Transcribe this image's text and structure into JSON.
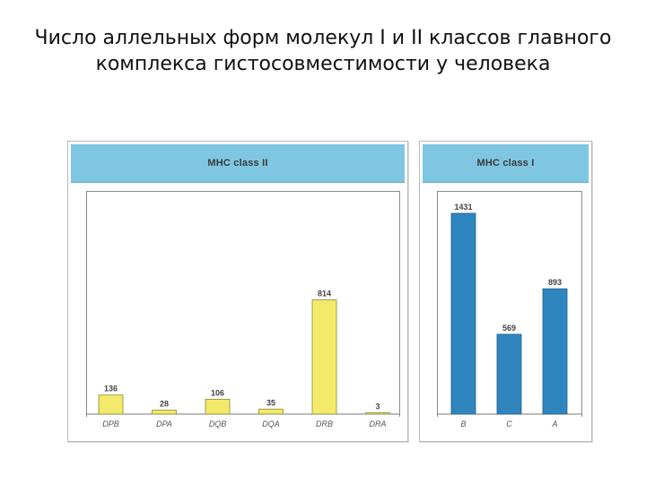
{
  "title": {
    "line1": "Число аллельных форм молекул I и II классов главного",
    "line2": "комплекса гистосовместимости у человека"
  },
  "chart_data": [
    {
      "type": "bar",
      "title": "MHC class II",
      "categories": [
        "DPB",
        "DPA",
        "DQB",
        "DQA",
        "DRB",
        "DRA"
      ],
      "values": [
        136,
        28,
        106,
        35,
        814,
        3
      ],
      "ylim": [
        0,
        1450
      ],
      "grid": false,
      "bar_color": "#f3e96a",
      "bar_stroke": "#8a8a3a",
      "header_color": "#7ec6e2"
    },
    {
      "type": "bar",
      "title": "MHC class I",
      "categories": [
        "B",
        "C",
        "A"
      ],
      "values": [
        1431,
        569,
        893
      ],
      "ylim": [
        0,
        1450
      ],
      "grid": false,
      "bar_color": "#2f86bf",
      "bar_stroke": "#1f5f8a",
      "header_color": "#7ec6e2"
    }
  ]
}
